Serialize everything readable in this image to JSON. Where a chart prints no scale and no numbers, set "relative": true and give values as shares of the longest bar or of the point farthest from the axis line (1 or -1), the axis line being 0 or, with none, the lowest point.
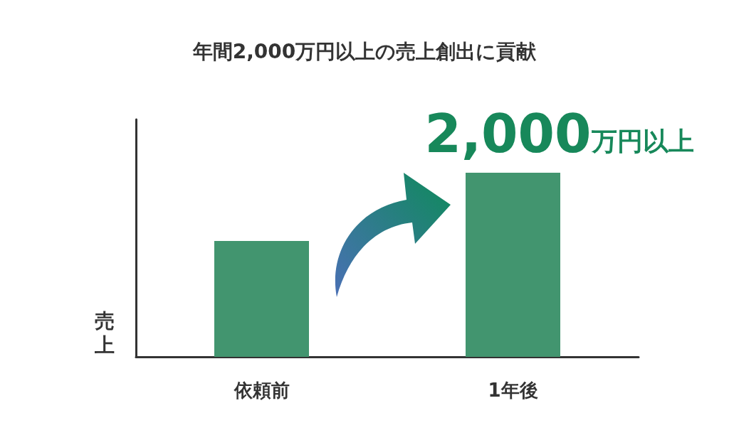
{
  "chart_data": {
    "type": "bar",
    "title": "年間2,000万円以上の売上創出に貢献",
    "ylabel": "売上",
    "relative": true,
    "categories": [
      "依頼前",
      "1年後"
    ],
    "values": [
      0.63,
      1
    ],
    "color": "#42956f",
    "annotations": [
      {
        "text": "2,000万円以上",
        "x": "1年後",
        "y": 1
      }
    ]
  }
}
